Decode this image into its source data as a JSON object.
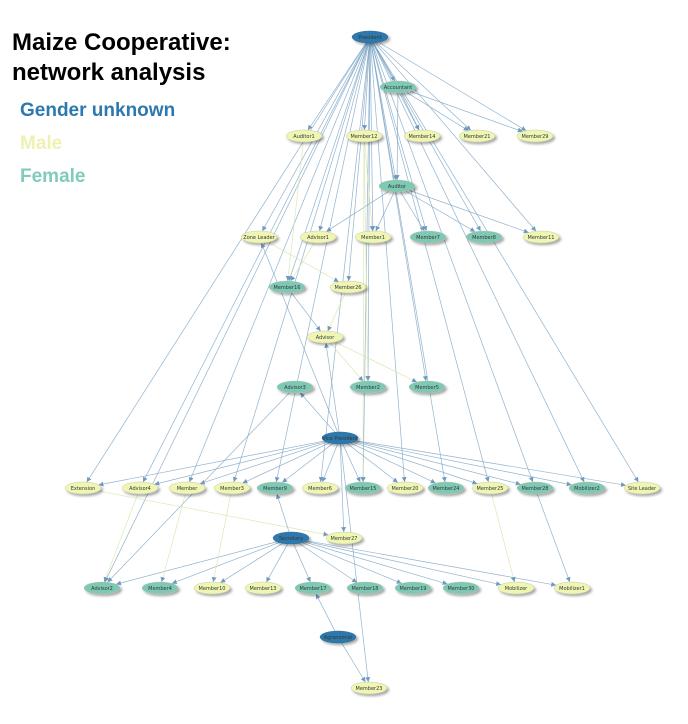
{
  "title_line1": "Maize Cooperative:",
  "title_line2": "network analysis",
  "legend": [
    {
      "label": "Gender unknown",
      "color": "#2d78ae"
    },
    {
      "label": "Male",
      "color": "#eef2b0"
    },
    {
      "label": "Female",
      "color": "#80cbbd"
    }
  ],
  "colors": {
    "unknown": "#2d78ae",
    "male": "#f0f5b4",
    "female": "#7fc8b6",
    "edge": "#7fa6c6"
  },
  "nodes": [
    {
      "id": "president",
      "label": "President",
      "gender": "unknown"
    },
    {
      "id": "accountant",
      "label": "Accountant",
      "gender": "female"
    },
    {
      "id": "auditor1",
      "label": "Auditor1",
      "gender": "male"
    },
    {
      "id": "member12",
      "label": "Member12",
      "gender": "male"
    },
    {
      "id": "member14",
      "label": "Member14",
      "gender": "male"
    },
    {
      "id": "member21",
      "label": "Member21",
      "gender": "male"
    },
    {
      "id": "member29",
      "label": "Member29",
      "gender": "male"
    },
    {
      "id": "auditor",
      "label": "Auditor",
      "gender": "female"
    },
    {
      "id": "zoneleader",
      "label": "Zone Leader",
      "gender": "male"
    },
    {
      "id": "advisor1",
      "label": "Advisor1",
      "gender": "male"
    },
    {
      "id": "member1",
      "label": "Member1",
      "gender": "male"
    },
    {
      "id": "member7",
      "label": "Member7",
      "gender": "female"
    },
    {
      "id": "member8",
      "label": "Member8",
      "gender": "female"
    },
    {
      "id": "member11",
      "label": "Member11",
      "gender": "male"
    },
    {
      "id": "member16",
      "label": "Member16",
      "gender": "female"
    },
    {
      "id": "member26",
      "label": "Member26",
      "gender": "male"
    },
    {
      "id": "advisor",
      "label": "Advisor",
      "gender": "male"
    },
    {
      "id": "advisor3",
      "label": "Advisor3",
      "gender": "female"
    },
    {
      "id": "member2",
      "label": "Member2",
      "gender": "female"
    },
    {
      "id": "member5",
      "label": "Member5",
      "gender": "female"
    },
    {
      "id": "vicepresident",
      "label": "Vice President",
      "gender": "unknown"
    },
    {
      "id": "extension",
      "label": "Extension",
      "gender": "male"
    },
    {
      "id": "advisor4",
      "label": "Advisor4",
      "gender": "male"
    },
    {
      "id": "member",
      "label": "Member",
      "gender": "male"
    },
    {
      "id": "member3",
      "label": "Member3",
      "gender": "male"
    },
    {
      "id": "member9",
      "label": "Member9",
      "gender": "female"
    },
    {
      "id": "member6",
      "label": "Member6",
      "gender": "male"
    },
    {
      "id": "member15",
      "label": "Member15",
      "gender": "female"
    },
    {
      "id": "member20",
      "label": "Member20",
      "gender": "male"
    },
    {
      "id": "member24",
      "label": "Member24",
      "gender": "female"
    },
    {
      "id": "member25",
      "label": "Member25",
      "gender": "male"
    },
    {
      "id": "member28",
      "label": "Member28",
      "gender": "female"
    },
    {
      "id": "mobilizer2",
      "label": "Mobilizer2",
      "gender": "female"
    },
    {
      "id": "siteleader",
      "label": "Site Leader",
      "gender": "male"
    },
    {
      "id": "secretary",
      "label": "Secretary",
      "gender": "unknown"
    },
    {
      "id": "member27",
      "label": "Member27",
      "gender": "male"
    },
    {
      "id": "advisor2",
      "label": "Advisor2",
      "gender": "female"
    },
    {
      "id": "member4",
      "label": "Member4",
      "gender": "female"
    },
    {
      "id": "member10",
      "label": "Member10",
      "gender": "male"
    },
    {
      "id": "member13",
      "label": "Member13",
      "gender": "male"
    },
    {
      "id": "member17",
      "label": "Member17",
      "gender": "female"
    },
    {
      "id": "member18",
      "label": "Member18",
      "gender": "female"
    },
    {
      "id": "member19",
      "label": "Member19",
      "gender": "female"
    },
    {
      "id": "member30",
      "label": "Member30",
      "gender": "female"
    },
    {
      "id": "mobilizer",
      "label": "Mobilizer",
      "gender": "male"
    },
    {
      "id": "mobilizer1",
      "label": "Mobilizer1",
      "gender": "male"
    },
    {
      "id": "agronomist",
      "label": "Agronomist",
      "gender": "unknown"
    },
    {
      "id": "member23",
      "label": "Member23",
      "gender": "male"
    }
  ],
  "edges": [
    [
      "president",
      "accountant"
    ],
    [
      "president",
      "auditor1"
    ],
    [
      "president",
      "member12"
    ],
    [
      "president",
      "member14"
    ],
    [
      "president",
      "member21"
    ],
    [
      "president",
      "member29"
    ],
    [
      "president",
      "auditor"
    ],
    [
      "president",
      "zoneleader"
    ],
    [
      "president",
      "advisor1"
    ],
    [
      "president",
      "member1"
    ],
    [
      "president",
      "member7"
    ],
    [
      "president",
      "member8"
    ],
    [
      "president",
      "member11"
    ],
    [
      "president",
      "member16"
    ],
    [
      "president",
      "member26"
    ],
    [
      "president",
      "member2"
    ],
    [
      "president",
      "member5"
    ],
    [
      "president",
      "extension"
    ],
    [
      "president",
      "advisor4"
    ],
    [
      "president",
      "member"
    ],
    [
      "president",
      "member3"
    ],
    [
      "president",
      "member9"
    ],
    [
      "president",
      "member6"
    ],
    [
      "president",
      "member15"
    ],
    [
      "president",
      "member20"
    ],
    [
      "president",
      "member24"
    ],
    [
      "president",
      "member25"
    ],
    [
      "president",
      "member28"
    ],
    [
      "president",
      "mobilizer2"
    ],
    [
      "president",
      "siteleader"
    ],
    [
      "president",
      "advisor2"
    ],
    [
      "accountant",
      "member14"
    ],
    [
      "accountant",
      "member21"
    ],
    [
      "accountant",
      "member29"
    ],
    [
      "accountant",
      "auditor"
    ],
    [
      "auditor",
      "member1"
    ],
    [
      "auditor",
      "member7"
    ],
    [
      "auditor",
      "member8"
    ],
    [
      "auditor",
      "member11"
    ],
    [
      "auditor",
      "advisor1"
    ],
    [
      "member12",
      "member1"
    ],
    [
      "member12",
      "member2"
    ],
    [
      "member12",
      "member15"
    ],
    [
      "auditor1",
      "member16"
    ],
    [
      "zoneleader",
      "member26"
    ],
    [
      "advisor1",
      "member16"
    ],
    [
      "member16",
      "advisor"
    ],
    [
      "advisor",
      "member5"
    ],
    [
      "advisor",
      "member2"
    ],
    [
      "member26",
      "advisor"
    ],
    [
      "vicepresident",
      "advisor3"
    ],
    [
      "vicepresident",
      "zoneleader"
    ],
    [
      "vicepresident",
      "advisor"
    ],
    [
      "vicepresident",
      "extension"
    ],
    [
      "vicepresident",
      "advisor4"
    ],
    [
      "vicepresident",
      "member"
    ],
    [
      "vicepresident",
      "member3"
    ],
    [
      "vicepresident",
      "member9"
    ],
    [
      "vicepresident",
      "member6"
    ],
    [
      "vicepresident",
      "member15"
    ],
    [
      "vicepresident",
      "member20"
    ],
    [
      "vicepresident",
      "member24"
    ],
    [
      "vicepresident",
      "member25"
    ],
    [
      "vicepresident",
      "member28"
    ],
    [
      "vicepresident",
      "mobilizer2"
    ],
    [
      "vicepresident",
      "siteleader"
    ],
    [
      "vicepresident",
      "member27"
    ],
    [
      "vicepresident",
      "member23"
    ],
    [
      "advisor3",
      "advisor2"
    ],
    [
      "extension",
      "member27"
    ],
    [
      "secretary",
      "advisor2"
    ],
    [
      "secretary",
      "member4"
    ],
    [
      "secretary",
      "member10"
    ],
    [
      "secretary",
      "member13"
    ],
    [
      "secretary",
      "member17"
    ],
    [
      "secretary",
      "member18"
    ],
    [
      "secretary",
      "member19"
    ],
    [
      "secretary",
      "member30"
    ],
    [
      "secretary",
      "mobilizer"
    ],
    [
      "secretary",
      "mobilizer1"
    ],
    [
      "secretary",
      "member9"
    ],
    [
      "agronomist",
      "member17"
    ],
    [
      "agronomist",
      "member23"
    ],
    [
      "member3",
      "member10"
    ],
    [
      "member",
      "member4"
    ],
    [
      "advisor4",
      "advisor2"
    ],
    [
      "member25",
      "mobilizer"
    ],
    [
      "member28",
      "mobilizer1"
    ]
  ]
}
